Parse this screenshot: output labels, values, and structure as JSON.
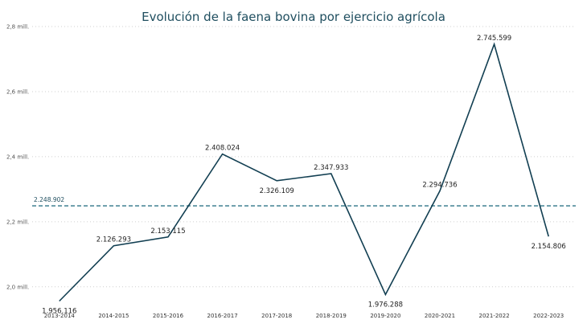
{
  "chart_data": {
    "type": "line",
    "title": "Evolución de la faena bovina por ejercicio agrícola",
    "categories": [
      "2013-2014",
      "2014-2015",
      "2015-2016",
      "2016-2017",
      "2017-2018",
      "2018-2019",
      "2019-2020",
      "2020-2021",
      "2021-2022",
      "2022-2023"
    ],
    "values": [
      1956116,
      2126293,
      2153115,
      2408024,
      2326109,
      2347933,
      1976288,
      2294736,
      2745599,
      2154806
    ],
    "data_labels": [
      "1.956.116",
      "2.126.293",
      "2.153.115",
      "2.408.024",
      "2.326.109",
      "2.347.933",
      "1.976.288",
      "2.294.736",
      "2.745.599",
      "2.154.806"
    ],
    "ylim": [
      1950000,
      2800000
    ],
    "yticks": [
      {
        "value": 2000000,
        "label": "2,0 mill."
      },
      {
        "value": 2200000,
        "label": "2,2 mill."
      },
      {
        "value": 2400000,
        "label": "2,4 mill."
      },
      {
        "value": 2600000,
        "label": "2,6 mill."
      },
      {
        "value": 2800000,
        "label": "2,8 mill."
      }
    ],
    "reference_line": {
      "value": 2248902,
      "label": "2.248.902"
    },
    "grid": true,
    "colors": {
      "line": "#123f52",
      "reference": "#4f8a9a",
      "title": "#1f4e5f"
    }
  }
}
